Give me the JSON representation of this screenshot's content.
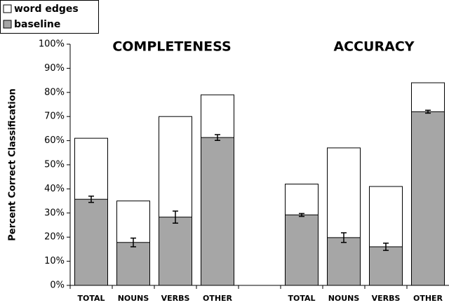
{
  "chart_data": {
    "type": "bar",
    "y_label": "Percent Correct Classification",
    "annotations": [
      "COMPLETENESS",
      "ACCURACY"
    ],
    "categories": [
      "TOTAL",
      "NOUNS",
      "VERBS",
      "OTHER",
      null,
      "TOTAL",
      "NOUNS",
      "VERBS",
      "OTHER"
    ],
    "series": [
      {
        "name": "word edges",
        "color": "#ffffff",
        "values": [
          61,
          35,
          70,
          79,
          0,
          42,
          57,
          41,
          84
        ]
      },
      {
        "name": "baseline",
        "color": "#a6a6a6",
        "values": [
          35.7,
          17.8,
          28.3,
          61.3,
          0,
          29.2,
          19.8,
          16,
          72
        ],
        "errors": [
          1.3,
          1.8,
          2.5,
          1.2,
          0,
          0.6,
          2,
          1.5,
          0.6
        ]
      }
    ],
    "ylim": [
      0,
      100
    ],
    "yticks": [
      {
        "value": 0,
        "label": "0%"
      },
      {
        "value": 10,
        "label": "10%"
      },
      {
        "value": 20,
        "label": "20%"
      },
      {
        "value": 30,
        "label": "30%"
      },
      {
        "value": 40,
        "label": "40%"
      },
      {
        "value": 50,
        "label": "50%"
      },
      {
        "value": 60,
        "label": "60%"
      },
      {
        "value": 70,
        "label": "70%"
      },
      {
        "value": 80,
        "label": "80%"
      },
      {
        "value": 90,
        "label": "90%"
      },
      {
        "value": 100,
        "label": "100%"
      }
    ],
    "legend": "top-left"
  }
}
